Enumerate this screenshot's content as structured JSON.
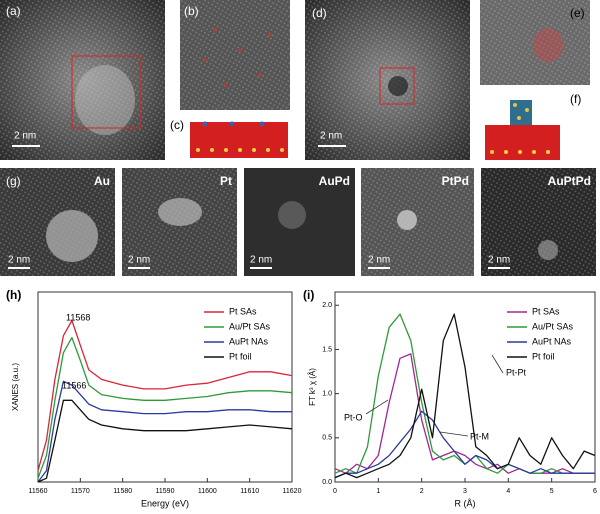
{
  "panel_labels": [
    "(a)",
    "(b)",
    "(c)",
    "(d)",
    "(e)",
    "(f)",
    "(g)",
    "(h)",
    "(i)"
  ],
  "scale_bars": [
    "2 nm",
    "2 nm",
    "2 nm",
    "2 nm",
    "2 nm",
    "2 nm",
    "2 nm"
  ],
  "image_labels": [
    "Au",
    "Pt",
    "AuPd",
    "PtPd",
    "AuPtPd"
  ],
  "chart_data": [
    {
      "type": "line",
      "xlabel": "Energy (eV)",
      "ylabel": "XANES (a.u.)",
      "x": [
        11560,
        11562,
        11564,
        11566,
        11568,
        11570,
        11572,
        11575,
        11580,
        11585,
        11590,
        11595,
        11600,
        11605,
        11610,
        11615,
        11620
      ],
      "xlim": [
        11560,
        11620
      ],
      "xticks": [
        11560,
        11570,
        11580,
        11590,
        11600,
        11610,
        11620
      ],
      "ylim": [
        0,
        1
      ],
      "annotations": [
        "11568",
        "11566"
      ],
      "series": [
        {
          "name": "Pt SAs",
          "color": "#d9263a",
          "values": [
            0.06,
            0.22,
            0.54,
            0.77,
            0.85,
            0.72,
            0.59,
            0.54,
            0.51,
            0.49,
            0.49,
            0.51,
            0.52,
            0.55,
            0.58,
            0.58,
            0.56
          ]
        },
        {
          "name": "Au/Pt SAs",
          "color": "#2e9b3a",
          "values": [
            0.02,
            0.14,
            0.43,
            0.68,
            0.76,
            0.64,
            0.51,
            0.46,
            0.44,
            0.43,
            0.43,
            0.44,
            0.45,
            0.47,
            0.48,
            0.48,
            0.47
          ]
        },
        {
          "name": "AuPt NAs",
          "color": "#2b3a9e",
          "values": [
            0,
            0.06,
            0.33,
            0.53,
            0.51,
            0.46,
            0.41,
            0.38,
            0.37,
            0.36,
            0.36,
            0.37,
            0.37,
            0.38,
            0.38,
            0.37,
            0.37
          ]
        },
        {
          "name": "Pt foil",
          "color": "#111111",
          "values": [
            0,
            0.02,
            0.22,
            0.43,
            0.43,
            0.38,
            0.33,
            0.3,
            0.28,
            0.27,
            0.27,
            0.27,
            0.28,
            0.29,
            0.3,
            0.29,
            0.28
          ]
        }
      ]
    },
    {
      "type": "line",
      "xlabel": "R (Å)",
      "ylabel": "FT k³ χ (Å)",
      "x": [
        0,
        0.25,
        0.5,
        0.75,
        1,
        1.25,
        1.5,
        1.75,
        2,
        2.25,
        2.5,
        2.75,
        3,
        3.25,
        3.5,
        3.75,
        4,
        4.25,
        4.5,
        4.75,
        5,
        5.25,
        5.5,
        5.75,
        6
      ],
      "xlim": [
        0,
        6
      ],
      "xticks": [
        0,
        1,
        2,
        3,
        4,
        5,
        6
      ],
      "ylim": [
        0,
        2.15
      ],
      "yticks": [
        {
          "value": 0,
          "label": "0.0"
        },
        0.5,
        {
          "value": 1,
          "label": "1.0"
        },
        1.5,
        {
          "value": 2,
          "label": "2.0"
        }
      ],
      "annotations": [
        "Pt-Pt",
        "Pt-O",
        "Pt-M"
      ],
      "series": [
        {
          "name": "Pt SAs",
          "color": "#a0288f",
          "values": [
            0.15,
            0.1,
            0.2,
            0.15,
            0.3,
            0.9,
            1.4,
            1.45,
            0.7,
            0.25,
            0.3,
            0.35,
            0.3,
            0.2,
            0.15,
            0.2,
            0.1,
            0.15,
            0.1,
            0.1,
            0.1,
            0.15,
            0.1,
            0.1,
            0.1
          ]
        },
        {
          "name": "Au/Pt SAs",
          "color": "#2e9b3a",
          "values": [
            0.1,
            0.15,
            0.1,
            0.4,
            1.2,
            1.75,
            1.9,
            1.6,
            0.9,
            0.35,
            0.25,
            0.3,
            0.2,
            0.3,
            0.15,
            0.1,
            0.2,
            0.15,
            0.1,
            0.1,
            0.15,
            0.1,
            0.1,
            0.1,
            0.1
          ]
        },
        {
          "name": "AuPt NAs",
          "color": "#2b3a9e",
          "values": [
            0.05,
            0.1,
            0.1,
            0.15,
            0.2,
            0.3,
            0.45,
            0.6,
            0.8,
            0.7,
            0.5,
            0.35,
            0.2,
            0.3,
            0.25,
            0.15,
            0.2,
            0.15,
            0.1,
            0.15,
            0.1,
            0.1,
            0.1,
            0.1,
            0.1
          ]
        },
        {
          "name": "Pt foil",
          "color": "#111111",
          "values": [
            0.05,
            0.1,
            0.05,
            0.1,
            0.15,
            0.2,
            0.3,
            0.5,
            1.05,
            0.5,
            1.6,
            1.9,
            1.3,
            0.4,
            0.3,
            0.15,
            0.2,
            0.5,
            0.3,
            0.2,
            0.5,
            0.3,
            0.15,
            0.35,
            0.3
          ]
        }
      ]
    }
  ]
}
